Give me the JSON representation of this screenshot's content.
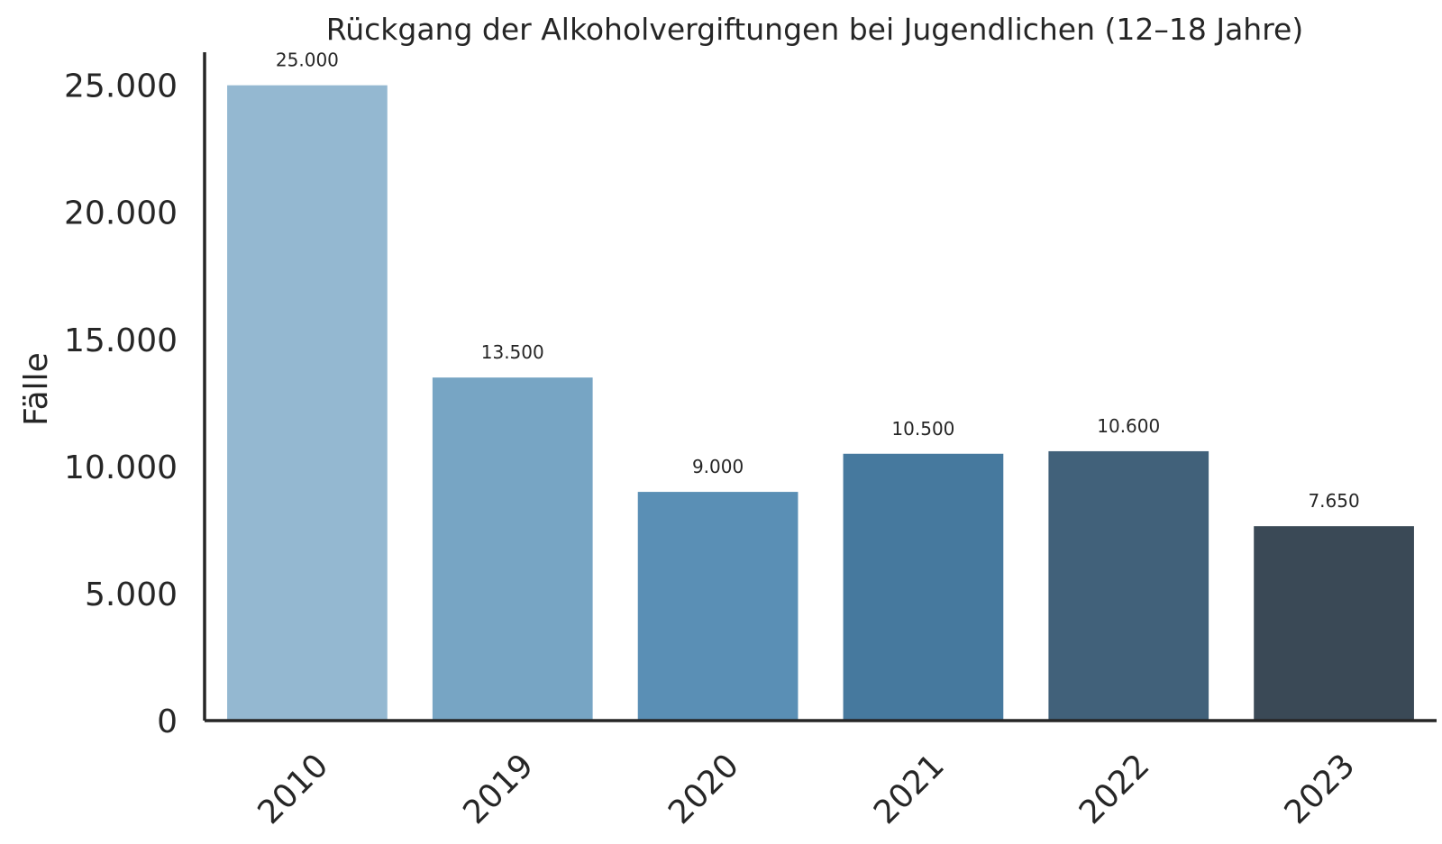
{
  "chart_data": {
    "type": "bar",
    "title": "Rückgang der Alkoholvergiftungen bei Jugendlichen (12–18 Jahre)",
    "xlabel": "",
    "ylabel": "Fälle",
    "categories": [
      "2010",
      "2019",
      "2020",
      "2021",
      "2022",
      "2023"
    ],
    "values": [
      25000,
      13500,
      9000,
      10500,
      10600,
      7650
    ],
    "value_labels": [
      "25.000",
      "13.500",
      "9.000",
      "10.500",
      "10.600",
      "7.650"
    ],
    "colors": [
      "#94b8d1",
      "#77a5c4",
      "#5a8fb5",
      "#46799e",
      "#41617a",
      "#3a4956"
    ],
    "ylim": [
      0,
      26300
    ],
    "yticks": [
      0,
      5000,
      10000,
      15000,
      20000,
      25000
    ],
    "ytick_labels": [
      "0",
      "5.000",
      "10.000",
      "15.000",
      "20.000",
      "25.000"
    ],
    "grid": false,
    "legend": "none"
  }
}
